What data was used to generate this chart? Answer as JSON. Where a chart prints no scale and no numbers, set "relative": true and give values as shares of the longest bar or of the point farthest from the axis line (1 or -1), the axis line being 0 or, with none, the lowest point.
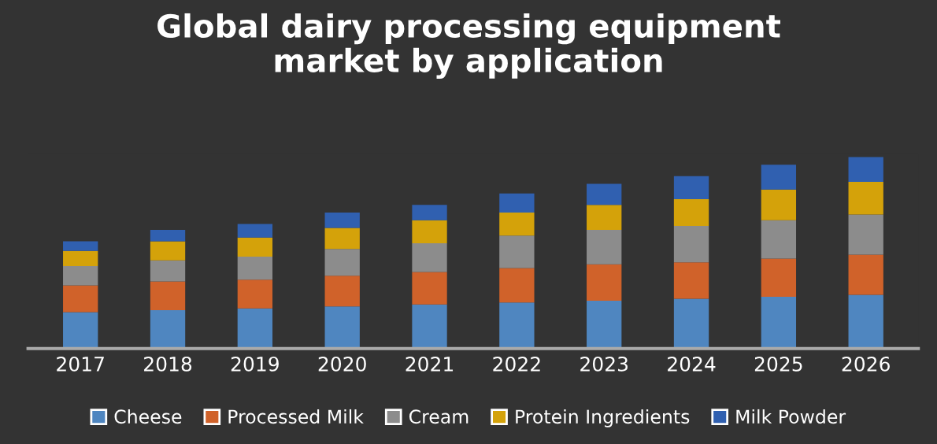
{
  "chart_data": {
    "type": "bar",
    "title": "Global dairy processing equipment\nmarket by application",
    "stacked": true,
    "relative": true,
    "legend": "bottom",
    "categories": [
      "2017",
      "2018",
      "2019",
      "2020",
      "2021",
      "2022",
      "2023",
      "2024",
      "2025",
      "2026"
    ],
    "series": [
      {
        "name": "Cheese",
        "color": "#4f86c0",
        "values": [
          0.19,
          0.2,
          0.21,
          0.22,
          0.23,
          0.24,
          0.25,
          0.26,
          0.27,
          0.28
        ]
      },
      {
        "name": "Processed Milk",
        "color": "#d0622a",
        "values": [
          0.14,
          0.15,
          0.15,
          0.16,
          0.17,
          0.18,
          0.19,
          0.19,
          0.2,
          0.21
        ]
      },
      {
        "name": "Cream",
        "color": "#8c8c8c",
        "values": [
          0.1,
          0.11,
          0.12,
          0.14,
          0.15,
          0.17,
          0.18,
          0.19,
          0.2,
          0.21
        ]
      },
      {
        "name": "Protein Ingredients",
        "color": "#d4a20a",
        "values": [
          0.08,
          0.1,
          0.1,
          0.11,
          0.12,
          0.12,
          0.13,
          0.14,
          0.16,
          0.17
        ]
      },
      {
        "name": "Milk Powder",
        "color": "#3060b0",
        "values": [
          0.05,
          0.06,
          0.07,
          0.08,
          0.08,
          0.1,
          0.11,
          0.12,
          0.13,
          0.13
        ]
      }
    ]
  }
}
